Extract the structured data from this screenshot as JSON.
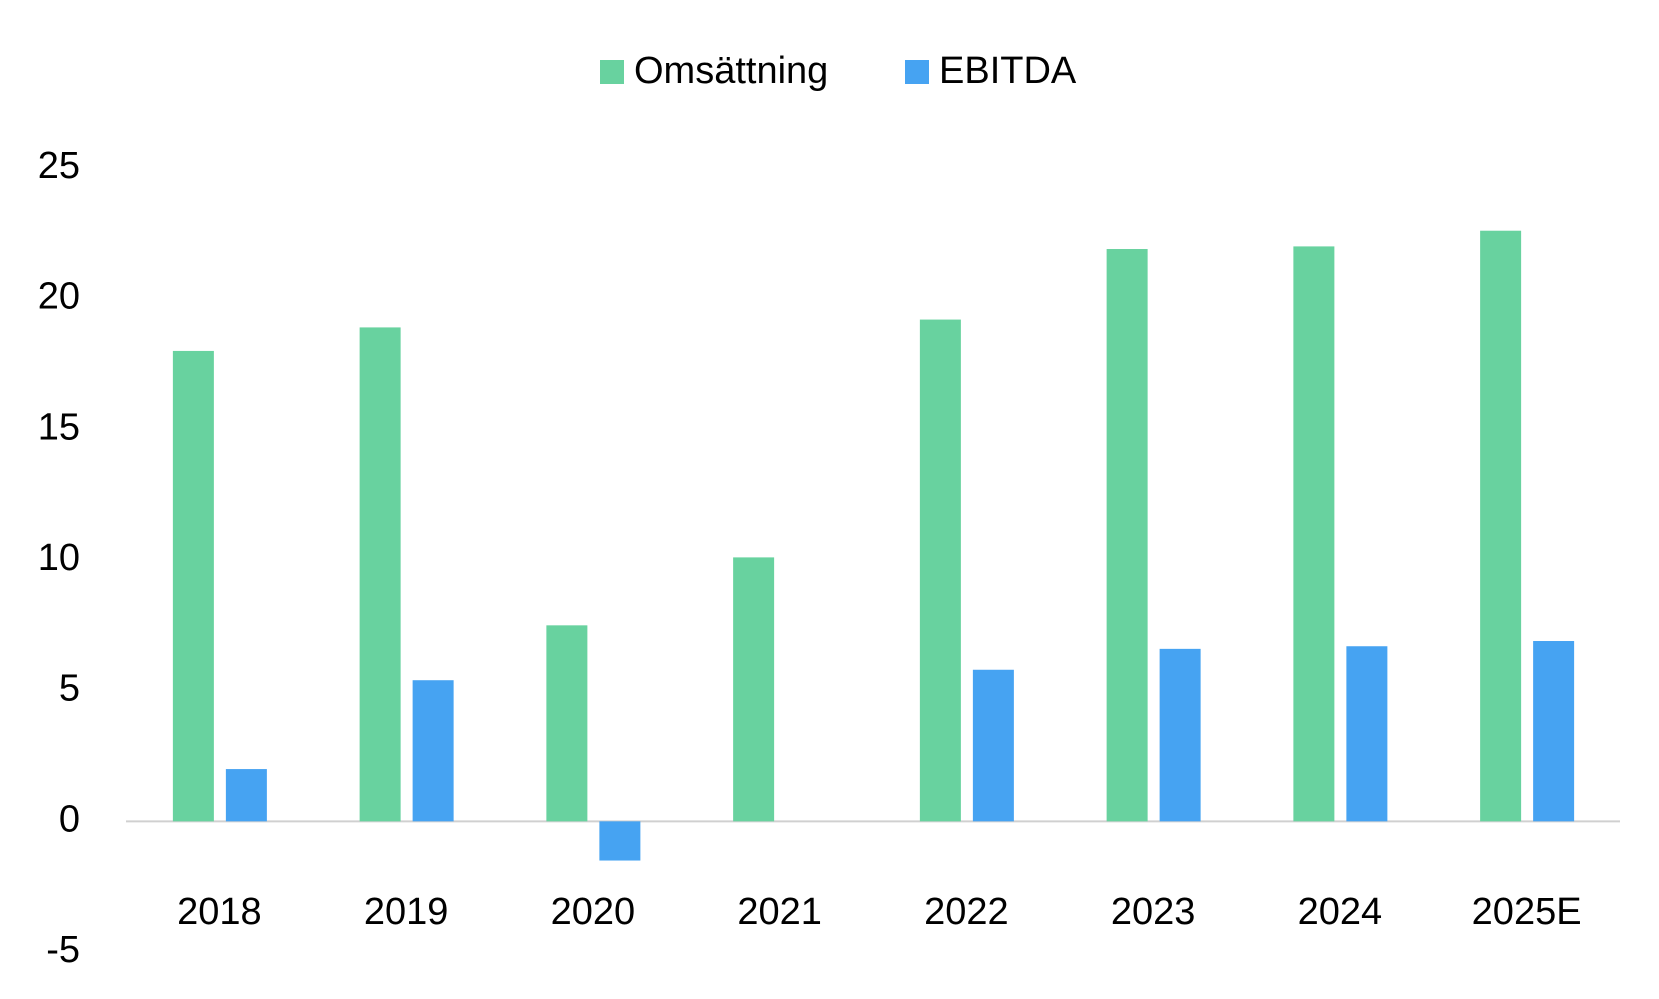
{
  "chart_data": {
    "type": "bar",
    "categories": [
      "2018",
      "2019",
      "2020",
      "2021",
      "2022",
      "2023",
      "2024",
      "2025E"
    ],
    "series": [
      {
        "name": "Omsättning",
        "color": "#68d29f",
        "values": [
          18.0,
          18.9,
          7.5,
          10.1,
          19.2,
          21.9,
          22.0,
          22.6
        ]
      },
      {
        "name": "EBITDA",
        "color": "#46a3f2",
        "values": [
          2.0,
          5.4,
          -1.5,
          null,
          5.8,
          6.6,
          6.7,
          6.9
        ]
      }
    ],
    "ylim": [
      -5,
      25
    ],
    "yticks": [
      -5,
      0,
      5,
      10,
      15,
      20,
      25
    ],
    "grid": false,
    "legend": "top"
  }
}
